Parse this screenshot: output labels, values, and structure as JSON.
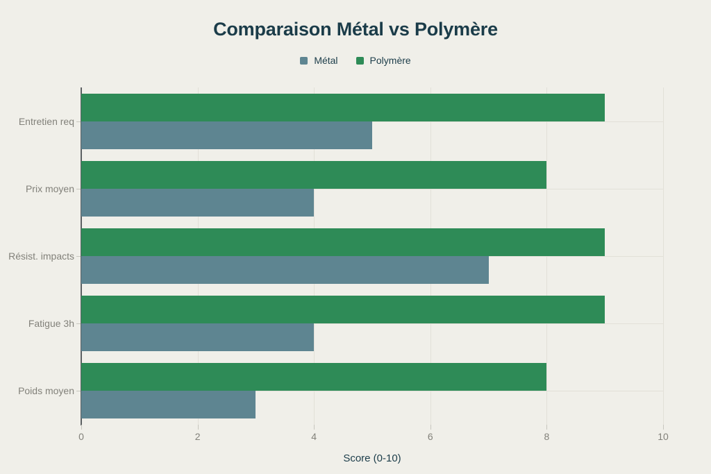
{
  "title": "Comparaison Métal vs Polymère",
  "chart_data": {
    "type": "bar",
    "orientation": "horizontal",
    "categories": [
      "Entretien req",
      "Prix moyen",
      "Résist. impacts",
      "Fatigue 3h",
      "Poids moyen"
    ],
    "series": [
      {
        "name": "Métal",
        "key": "metal",
        "color": "#5e8591",
        "values": [
          5,
          4,
          7,
          4,
          3
        ]
      },
      {
        "name": "Polymère",
        "key": "polymere",
        "color": "#2e8b57",
        "values": [
          9,
          8,
          9,
          9,
          8
        ]
      }
    ],
    "xlabel": "Score (0-10)",
    "xlim": [
      0,
      10
    ],
    "xticks": [
      0,
      2,
      4,
      6,
      8,
      10
    ],
    "grid": true,
    "legend_position": "top",
    "bar_stack_order_top_to_bottom": [
      "Polymère",
      "Métal"
    ]
  },
  "colors": {
    "background": "#f0efe9",
    "title_text": "#1b3c49",
    "axis_label_text": "#82817a",
    "gridline": "#e2e0d8",
    "axis_line": "#5c6062",
    "metal": "#5e8591",
    "polymere": "#2e8b57"
  }
}
